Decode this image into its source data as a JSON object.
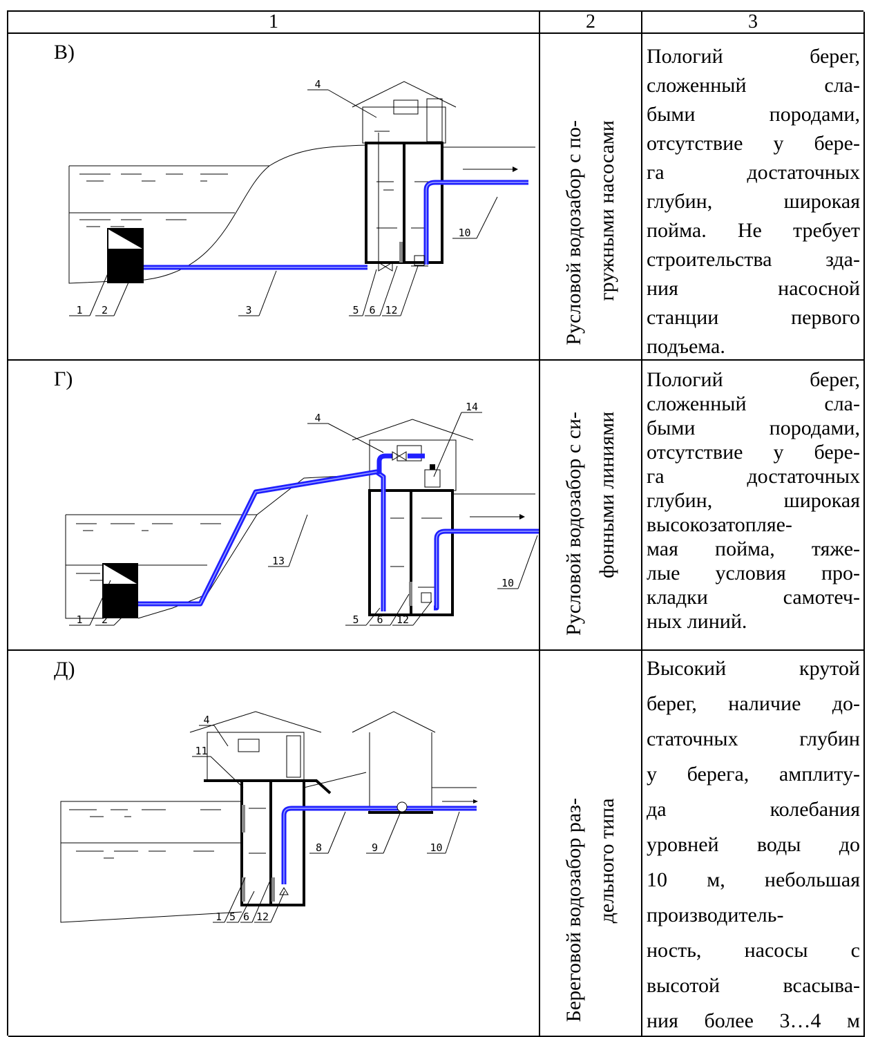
{
  "header": {
    "columns": [
      "1",
      "2",
      "3"
    ]
  },
  "rows": [
    {
      "diagram": {
        "label": "В)",
        "callouts": [
          "4",
          "10",
          "1",
          "2",
          "3",
          "5",
          "6",
          "12"
        ]
      },
      "type_lines": [
        "Русловой водозабор с по-",
        "гружными насосами"
      ],
      "conditions_lines": [
        "Пологий берег,",
        "сложенный сла-",
        "быми породами,",
        "отсутствие у бере-",
        "га достаточных",
        "глубин, широкая",
        "пойма. Не требует",
        "строительства зда-",
        "ния насосной",
        "станции первого",
        "подъема."
      ]
    },
    {
      "diagram": {
        "label": "Г)",
        "callouts": [
          "4",
          "14",
          "13",
          "10",
          "1",
          "2",
          "5",
          "6",
          "12"
        ]
      },
      "type_lines": [
        "Русловой водозабор с си-",
        "фонными линиями"
      ],
      "conditions_lines": [
        "Пологий берег,",
        "сложенный сла-",
        "быми породами,",
        "отсутствие у бере-",
        "га достаточных",
        "глубин, широкая",
        "высокозатопляе-",
        "мая пойма, тяже-",
        "лые условия про-",
        "кладки самотеч-",
        "ных линий."
      ]
    },
    {
      "diagram": {
        "label": "Д)",
        "callouts": [
          "4",
          "11",
          "8",
          "9",
          "10",
          "1",
          "5",
          "6",
          "12"
        ]
      },
      "type_lines": [
        "Береговой водозабор раз-",
        "дельного типа"
      ],
      "conditions_lines": [
        "Высокий крутой",
        "берег, наличие до-",
        "статочных глубин",
        "у берега, амплиту-",
        "да колебания",
        "уровней воды до",
        "10 м, небольшая",
        "производитель-",
        "ность, насосы с",
        "высотой всасыва-",
        "ния более 3…4 м"
      ]
    }
  ]
}
